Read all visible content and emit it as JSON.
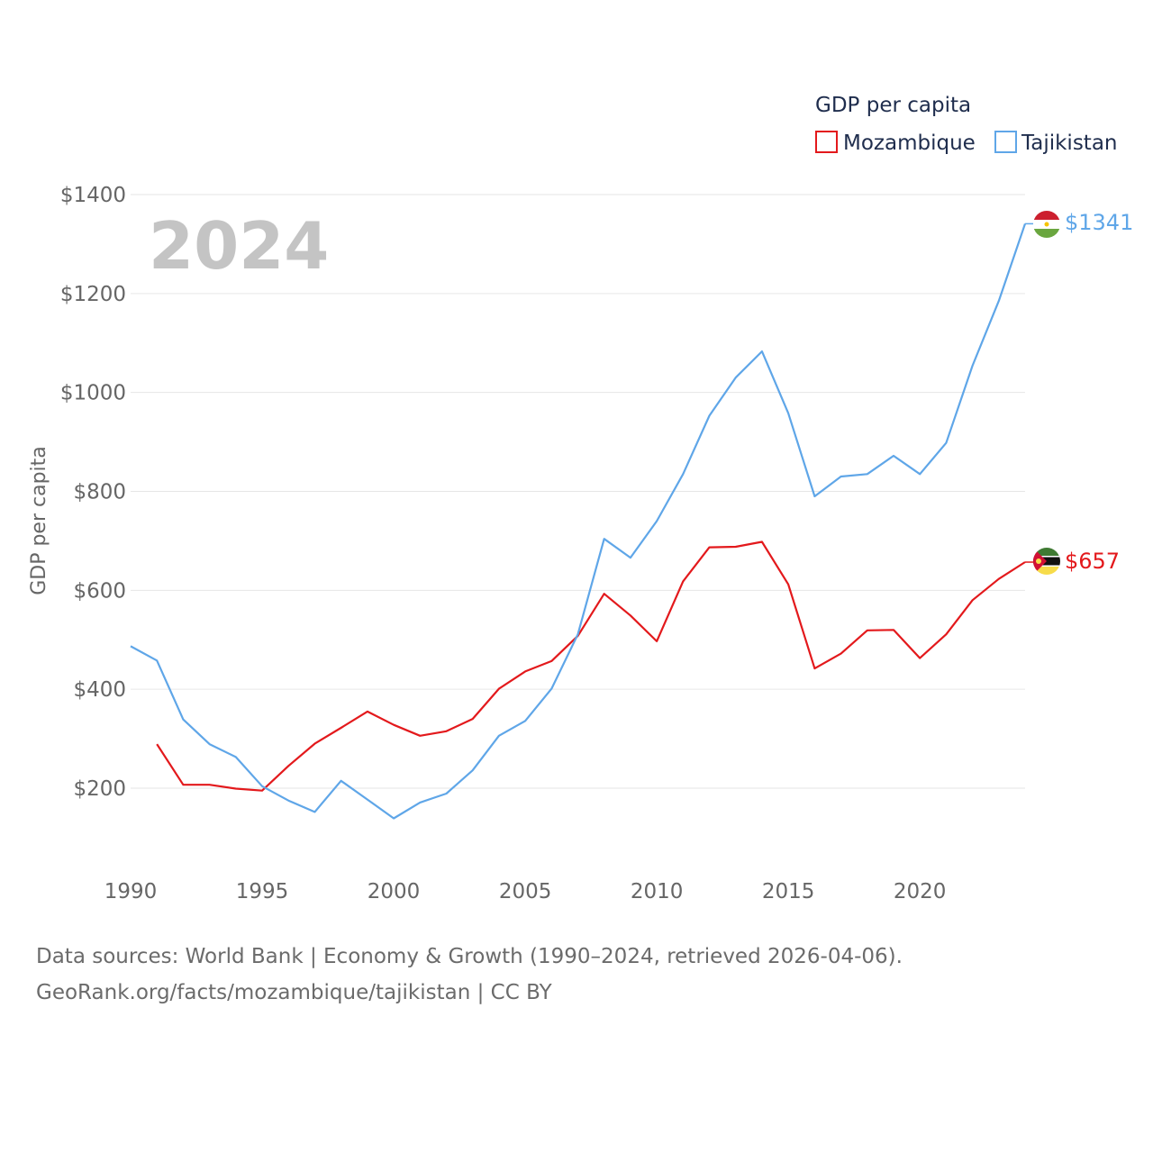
{
  "chart_data": {
    "type": "line",
    "title": "GDP per capita",
    "ylabel": "GDP per capita",
    "xlabel": "",
    "year_label": "2024",
    "xlim": [
      1990,
      2024
    ],
    "ylim": [
      60,
      1440
    ],
    "x_ticks": [
      "1990",
      "1995",
      "2000",
      "2005",
      "2010",
      "2015",
      "2020"
    ],
    "y_ticks": [
      {
        "value": 200,
        "label": "$200"
      },
      {
        "value": 400,
        "label": "$400"
      },
      {
        "value": 600,
        "label": "$600"
      },
      {
        "value": 800,
        "label": "$800"
      },
      {
        "value": 1000,
        "label": "$1000"
      },
      {
        "value": 1200,
        "label": "$1200"
      },
      {
        "value": 1400,
        "label": "$1400"
      }
    ],
    "legend": {
      "title": "GDP per capita",
      "placement": "top-right"
    },
    "series": [
      {
        "name": "Mozambique",
        "color": "#e3191c",
        "end_label": "$657",
        "flag_icon": "mozambique-flag-icon",
        "x": [
          1991,
          1992,
          1993,
          1994,
          1995,
          1996,
          1997,
          1998,
          1999,
          2000,
          2001,
          2002,
          2003,
          2004,
          2005,
          2006,
          2007,
          2008,
          2009,
          2010,
          2011,
          2012,
          2013,
          2014,
          2015,
          2016,
          2017,
          2018,
          2019,
          2020,
          2021,
          2022,
          2023,
          2024
        ],
        "values": [
          289,
          207,
          207,
          199,
          195,
          245,
          290,
          322,
          355,
          328,
          306,
          315,
          340,
          401,
          436,
          457,
          508,
          593,
          549,
          497,
          618,
          687,
          688,
          698,
          612,
          442,
          472,
          519,
          520,
          463,
          511,
          580,
          623,
          657
        ]
      },
      {
        "name": "Tajikistan",
        "color": "#5fa6e8",
        "end_label": "$1341",
        "flag_icon": "tajikistan-flag-icon",
        "x": [
          1990,
          1991,
          1992,
          1993,
          1994,
          1995,
          1996,
          1997,
          1998,
          1999,
          2000,
          2001,
          2002,
          2003,
          2004,
          2005,
          2006,
          2007,
          2008,
          2009,
          2010,
          2011,
          2012,
          2013,
          2014,
          2015,
          2016,
          2017,
          2018,
          2019,
          2020,
          2021,
          2022,
          2023,
          2024
        ],
        "values": [
          487,
          458,
          339,
          289,
          263,
          204,
          175,
          152,
          215,
          177,
          139,
          171,
          189,
          236,
          306,
          336,
          401,
          511,
          704,
          666,
          740,
          835,
          953,
          1030,
          1083,
          958,
          790,
          830,
          835,
          872,
          835,
          898,
          1054,
          1185,
          1341
        ]
      }
    ]
  },
  "footer": {
    "line1": "Data sources: World Bank | Economy & Growth (1990–2024, retrieved 2026-04-06).",
    "line2": "GeoRank.org/facts/mozambique/tajikistan | CC BY"
  }
}
